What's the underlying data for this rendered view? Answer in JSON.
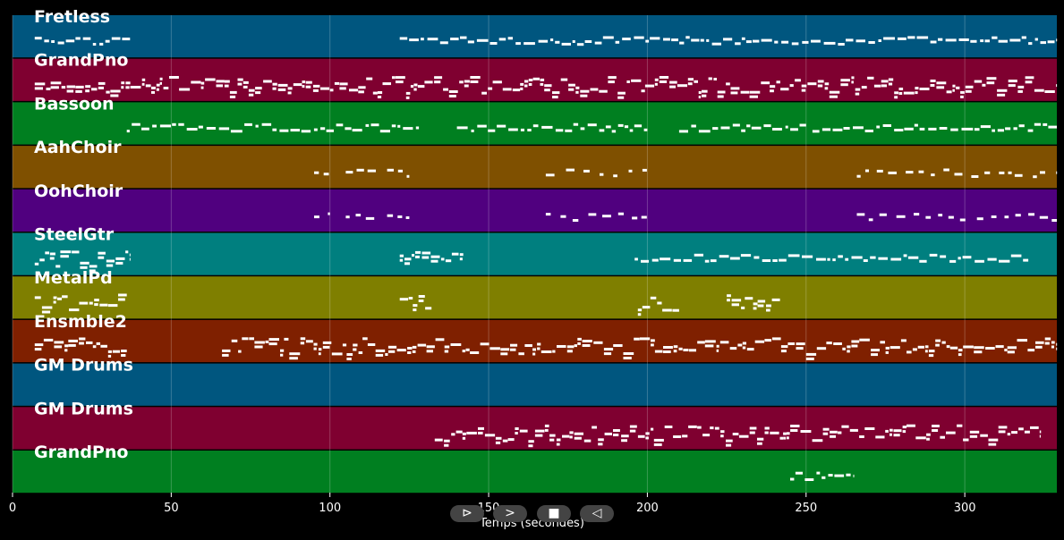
{
  "axis": {
    "xlabel": "Temps (secondes)",
    "xlim": [
      0,
      329
    ],
    "ticks": [
      0,
      50,
      100,
      150,
      200,
      250,
      300
    ]
  },
  "tracks": [
    {
      "name": "Fretless",
      "color": "#00567f",
      "segments": [
        [
          7,
          37,
          "sparse"
        ],
        [
          122,
          329,
          "sparse"
        ]
      ]
    },
    {
      "name": "GrandPno",
      "color": "#7f0030",
      "segments": [
        [
          7,
          329,
          "dense"
        ]
      ]
    },
    {
      "name": "Bassoon",
      "color": "#007f20",
      "segments": [
        [
          36,
          128,
          "sparse"
        ],
        [
          140,
          200,
          "sparse"
        ],
        [
          210,
          250,
          "sparse"
        ],
        [
          252,
          329,
          "sparse"
        ]
      ]
    },
    {
      "name": "AahChoir",
      "color": "#7f5000",
      "segments": [
        [
          95,
          100,
          "dots"
        ],
        [
          105,
          115,
          "dots"
        ],
        [
          118,
          125,
          "dots"
        ],
        [
          168,
          200,
          "dots"
        ],
        [
          266,
          329,
          "dots"
        ]
      ]
    },
    {
      "name": "OohChoir",
      "color": "#50007f",
      "segments": [
        [
          95,
          100,
          "dots"
        ],
        [
          105,
          115,
          "dots"
        ],
        [
          118,
          125,
          "dots"
        ],
        [
          168,
          200,
          "dots"
        ],
        [
          266,
          329,
          "dots"
        ]
      ]
    },
    {
      "name": "SteelGtr",
      "color": "#007f7f",
      "segments": [
        [
          7,
          37,
          "dense"
        ],
        [
          122,
          142,
          "dense"
        ],
        [
          196,
          320,
          "sparse"
        ]
      ]
    },
    {
      "name": "MetalPd",
      "color": "#7f7f00",
      "segments": [
        [
          7,
          36,
          "dense"
        ],
        [
          122,
          132,
          "dense"
        ],
        [
          197,
          210,
          "dense"
        ],
        [
          225,
          242,
          "dense"
        ]
      ]
    },
    {
      "name": "Ensmble2",
      "color": "#7f2000",
      "segments": [
        [
          7,
          36,
          "dense"
        ],
        [
          66,
          329,
          "dense"
        ]
      ]
    },
    {
      "name": "GM Drums",
      "color": "#00567f",
      "segments": []
    },
    {
      "name": "GM Drums",
      "color": "#7f0030",
      "segments": [
        [
          133,
          324,
          "dense"
        ]
      ]
    },
    {
      "name": "GrandPno",
      "color": "#007f20",
      "segments": [
        [
          245,
          265,
          "sparse"
        ]
      ]
    }
  ],
  "controls": [
    {
      "name": "rewind-button",
      "glyph": "⊳"
    },
    {
      "name": "play-button",
      "glyph": ">"
    },
    {
      "name": "stop-button",
      "glyph": "■"
    },
    {
      "name": "back-button",
      "glyph": "◁"
    }
  ]
}
